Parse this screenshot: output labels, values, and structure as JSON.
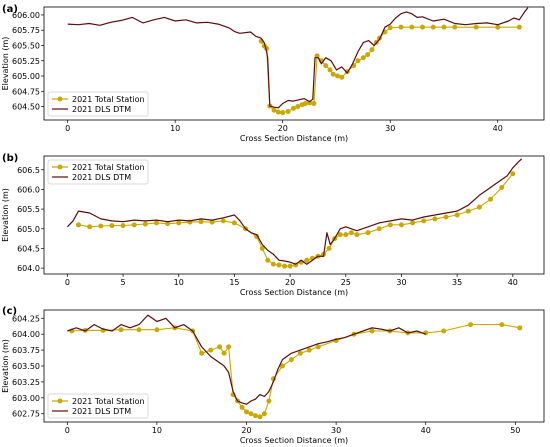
{
  "figure": {
    "colors": {
      "total_station": "#c9a800",
      "dtm": "#5a0d0d"
    }
  },
  "chart_data": [
    {
      "type": "line",
      "panel_label": "(a)",
      "xlabel": "Cross Section Distance (m)",
      "ylabel": "Elevation (m)",
      "xlim": [
        -2.2,
        44.3
      ],
      "ylim": [
        604.28,
        606.13
      ],
      "xticks": [
        "0",
        "10",
        "20",
        "30",
        "40"
      ],
      "yticks": [
        "604.50",
        "604.75",
        "605.00",
        "605.25",
        "605.50",
        "605.75",
        "606.00"
      ],
      "legend_position": "lower-left",
      "series": [
        {
          "name": "2021 Total Station",
          "marker": "circle",
          "x": [
            18.0,
            18.3,
            18.5,
            18.8,
            19.2,
            19.6,
            20.0,
            20.5,
            21.0,
            21.4,
            21.8,
            22.1,
            22.5,
            22.9,
            23.2,
            23.6,
            24.0,
            24.4,
            24.7,
            25.1,
            25.5,
            26.0,
            26.6,
            27.0,
            27.5,
            27.9,
            28.3,
            28.7,
            29.0,
            29.5,
            30.0,
            31.0,
            32.0,
            33.0,
            34.0,
            35.0,
            36.0,
            38.0,
            40.0,
            42.0
          ],
          "y": [
            605.57,
            605.49,
            605.45,
            604.51,
            604.44,
            604.41,
            604.4,
            604.42,
            604.47,
            604.5,
            604.53,
            604.55,
            604.56,
            604.55,
            605.33,
            605.25,
            605.17,
            605.1,
            605.03,
            605.0,
            604.98,
            605.07,
            605.17,
            605.25,
            605.3,
            605.35,
            605.43,
            605.55,
            605.62,
            605.72,
            605.79,
            605.8,
            605.8,
            605.8,
            605.8,
            605.8,
            605.8,
            605.8,
            605.8,
            605.8
          ]
        },
        {
          "name": "2021 DLS DTM",
          "x": [
            0.0,
            1.0,
            2.0,
            3.0,
            4.0,
            5.0,
            6.0,
            7.0,
            8.0,
            9.0,
            10.0,
            11.0,
            12.0,
            13.0,
            14.0,
            15.0,
            15.5,
            16.0,
            17.0,
            17.5,
            18.0,
            18.3,
            18.5,
            18.6,
            18.8,
            19.2,
            19.6,
            20.0,
            20.5,
            21.0,
            21.5,
            22.0,
            22.5,
            22.8,
            23.0,
            23.3,
            23.6,
            24.0,
            24.5,
            25.0,
            25.5,
            26.0,
            26.5,
            27.0,
            27.5,
            28.0,
            28.5,
            29.0,
            29.5,
            30.0,
            30.5,
            31.0,
            31.5,
            32.0,
            32.5,
            33.0,
            34.0,
            35.0,
            36.0,
            37.0,
            38.0,
            39.0,
            40.0,
            41.0,
            41.5,
            42.0,
            42.5,
            42.8
          ],
          "y": [
            605.85,
            605.84,
            605.86,
            605.83,
            605.88,
            605.91,
            605.96,
            605.87,
            605.92,
            605.96,
            605.9,
            605.92,
            605.87,
            605.88,
            605.85,
            605.79,
            605.73,
            605.7,
            605.72,
            605.65,
            605.62,
            605.54,
            605.4,
            605.3,
            604.51,
            604.49,
            604.48,
            604.55,
            604.6,
            604.59,
            604.61,
            604.63,
            604.58,
            604.62,
            605.3,
            605.3,
            605.2,
            605.3,
            605.25,
            605.1,
            605.15,
            605.05,
            605.2,
            605.4,
            605.55,
            605.58,
            605.5,
            605.6,
            605.8,
            605.85,
            605.95,
            606.02,
            606.05,
            606.02,
            605.96,
            605.97,
            605.9,
            605.93,
            605.86,
            605.84,
            605.86,
            605.87,
            605.84,
            605.9,
            605.95,
            605.92,
            606.05,
            606.12
          ]
        }
      ]
    },
    {
      "type": "line",
      "panel_label": "(b)",
      "xlabel": "Cross Section Distance (m)",
      "ylabel": "Elevation (m)",
      "xlim": [
        -2.1,
        42.8
      ],
      "ylim": [
        603.85,
        606.85
      ],
      "xticks": [
        "0",
        "5",
        "10",
        "15",
        "20",
        "25",
        "30",
        "35",
        "40"
      ],
      "yticks": [
        "604.0",
        "604.5",
        "605.0",
        "605.5",
        "606.0",
        "606.5"
      ],
      "legend_position": "upper-left",
      "series": [
        {
          "name": "2021 Total Station",
          "marker": "circle",
          "x": [
            1.0,
            2.0,
            3.0,
            4.0,
            5.0,
            6.0,
            7.0,
            8.0,
            9.0,
            10.0,
            11.0,
            12.0,
            13.0,
            14.0,
            15.0,
            16.0,
            17.0,
            17.5,
            18.0,
            18.5,
            19.0,
            19.5,
            20.0,
            20.5,
            21.0,
            21.5,
            22.0,
            22.5,
            23.0,
            23.5,
            24.0,
            24.5,
            25.0,
            25.5,
            26.0,
            27.0,
            28.0,
            29.0,
            30.0,
            31.0,
            32.0,
            33.0,
            34.0,
            35.0,
            36.0,
            37.0,
            38.0,
            39.0,
            40.0
          ],
          "y": [
            605.1,
            605.05,
            605.07,
            605.08,
            605.08,
            605.1,
            605.12,
            605.15,
            605.13,
            605.15,
            605.17,
            605.18,
            605.17,
            605.2,
            605.15,
            605.0,
            604.8,
            604.5,
            604.2,
            604.1,
            604.08,
            604.05,
            604.05,
            604.08,
            604.15,
            604.2,
            604.25,
            604.3,
            604.35,
            604.5,
            604.75,
            604.85,
            604.85,
            604.9,
            604.85,
            604.9,
            605.0,
            605.1,
            605.1,
            605.15,
            605.2,
            605.25,
            605.3,
            605.35,
            605.45,
            605.55,
            605.75,
            606.05,
            606.4
          ]
        },
        {
          "name": "2021 DLS DTM",
          "x": [
            0.0,
            0.5,
            1.0,
            2.0,
            3.0,
            4.0,
            5.0,
            6.0,
            7.0,
            8.0,
            9.0,
            10.0,
            11.0,
            12.0,
            13.0,
            14.0,
            15.0,
            15.5,
            16.0,
            16.5,
            17.0,
            17.5,
            18.0,
            18.5,
            19.0,
            19.5,
            20.0,
            20.5,
            21.0,
            21.5,
            22.0,
            22.5,
            23.0,
            23.3,
            23.6,
            24.0,
            24.5,
            25.0,
            25.5,
            26.0,
            27.0,
            28.0,
            29.0,
            30.0,
            31.0,
            32.0,
            33.0,
            34.0,
            35.0,
            36.0,
            37.0,
            38.0,
            38.5,
            39.0,
            39.5,
            40.0,
            40.5,
            40.8
          ],
          "y": [
            605.05,
            605.2,
            605.45,
            605.4,
            605.25,
            605.2,
            605.18,
            605.22,
            605.2,
            605.22,
            605.18,
            605.22,
            605.2,
            605.25,
            605.22,
            605.28,
            605.35,
            605.2,
            605.0,
            604.9,
            604.85,
            604.6,
            604.45,
            604.35,
            604.2,
            604.18,
            604.15,
            604.1,
            604.2,
            604.1,
            604.2,
            604.3,
            604.3,
            604.9,
            604.6,
            604.75,
            605.0,
            605.05,
            605.0,
            604.95,
            605.05,
            605.15,
            605.2,
            605.25,
            605.22,
            605.3,
            605.35,
            605.4,
            605.45,
            605.6,
            605.85,
            606.05,
            606.15,
            606.25,
            606.35,
            606.55,
            606.7,
            606.78
          ]
        }
      ]
    },
    {
      "type": "line",
      "panel_label": "(c)",
      "xlabel": "Cross Section Distance (m)",
      "ylabel": "Elevation (m)",
      "xlim": [
        -2.6,
        53.2
      ],
      "ylim": [
        602.62,
        604.38
      ],
      "xticks": [
        "0",
        "10",
        "20",
        "30",
        "40",
        "50"
      ],
      "yticks": [
        "602.75",
        "603.00",
        "603.25",
        "603.50",
        "603.75",
        "604.00",
        "604.25"
      ],
      "legend_position": "lower-left",
      "series": [
        {
          "name": "2021 Total Station",
          "marker": "circle",
          "x": [
            0.5,
            2.0,
            4.0,
            6.0,
            8.0,
            10.0,
            12.0,
            14.0,
            15.0,
            16.0,
            17.0,
            17.5,
            18.0,
            18.5,
            19.0,
            19.5,
            20.0,
            20.5,
            21.0,
            21.5,
            22.0,
            22.5,
            23.0,
            24.0,
            25.0,
            26.0,
            27.0,
            28.0,
            30.0,
            32.0,
            34.0,
            36.0,
            38.0,
            40.0,
            42.0,
            45.0,
            48.5,
            50.5
          ],
          "y": [
            604.05,
            604.06,
            604.06,
            604.07,
            604.07,
            604.07,
            604.1,
            604.05,
            603.7,
            603.75,
            603.8,
            603.7,
            603.8,
            603.05,
            602.95,
            602.85,
            602.78,
            602.75,
            602.72,
            602.7,
            602.75,
            602.95,
            603.3,
            603.5,
            603.6,
            603.7,
            603.75,
            603.8,
            603.9,
            604.0,
            604.05,
            604.05,
            604.02,
            604.02,
            604.05,
            604.15,
            604.15,
            604.1
          ]
        },
        {
          "name": "2021 DLS DTM",
          "x": [
            0.0,
            1.0,
            2.0,
            3.0,
            4.0,
            5.0,
            6.0,
            7.0,
            8.0,
            9.0,
            10.0,
            11.0,
            12.0,
            13.0,
            14.0,
            15.0,
            16.0,
            17.0,
            17.5,
            18.0,
            18.5,
            19.0,
            19.5,
            20.0,
            20.5,
            21.0,
            21.5,
            22.0,
            22.5,
            23.0,
            23.5,
            24.0,
            25.0,
            26.0,
            27.0,
            28.0,
            29.0,
            30.0,
            31.0,
            32.0,
            33.0,
            34.0,
            35.0,
            36.0,
            37.0,
            38.0,
            39.0,
            40.0
          ],
          "y": [
            604.05,
            604.1,
            604.05,
            604.15,
            604.08,
            604.05,
            604.15,
            604.1,
            604.15,
            604.3,
            604.2,
            604.25,
            604.1,
            604.15,
            604.05,
            603.8,
            603.65,
            603.55,
            603.5,
            603.4,
            603.1,
            602.95,
            602.92,
            602.9,
            602.95,
            602.98,
            603.05,
            603.02,
            603.1,
            603.25,
            603.45,
            603.6,
            603.7,
            603.75,
            603.8,
            603.85,
            603.88,
            603.92,
            603.95,
            604.0,
            604.05,
            604.1,
            604.08,
            604.05,
            604.1,
            604.02,
            604.05,
            604.0
          ]
        }
      ]
    }
  ]
}
